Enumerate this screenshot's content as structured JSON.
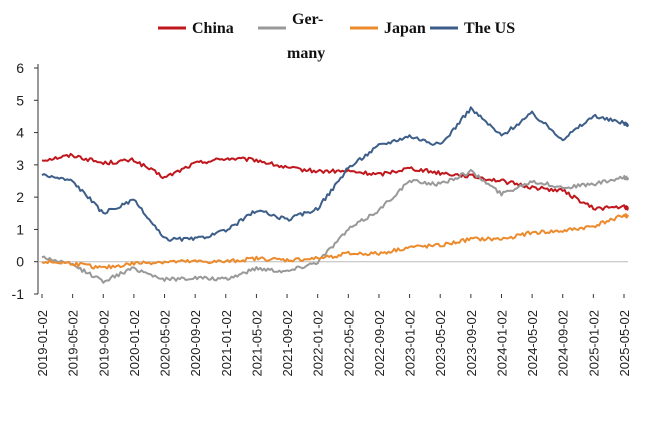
{
  "chart_data": {
    "type": "line",
    "title": "",
    "xlabel": "",
    "ylabel": "",
    "ylim": [
      -1,
      6
    ],
    "yticks": [
      "6",
      "5",
      "4",
      "3",
      "2",
      "1",
      "0",
      "-1"
    ],
    "x": [
      "2019-01-02",
      "2019-05-02",
      "2019-09-02",
      "2020-01-02",
      "2020-05-02",
      "2020-09-02",
      "2021-01-02",
      "2021-05-02",
      "2021-09-02",
      "2022-01-02",
      "2022-05-02",
      "2022-09-02",
      "2023-01-02",
      "2023-05-02",
      "2023-09-02",
      "2024-01-02",
      "2024-05-02",
      "2024-09-02",
      "2025-01-02",
      "2025-05-02"
    ],
    "legend_position": "top",
    "series": [
      {
        "name": "China",
        "color": "#c0171d",
        "values": [
          3.15,
          3.3,
          3.05,
          3.15,
          2.6,
          3.05,
          3.2,
          3.15,
          2.9,
          2.8,
          2.8,
          2.7,
          2.9,
          2.75,
          2.65,
          2.5,
          2.3,
          2.2,
          1.65,
          1.7
        ],
        "end": 1.65
      },
      {
        "name": "Ger-\nmany",
        "color": "#999999",
        "values": [
          0.15,
          -0.1,
          -0.6,
          -0.2,
          -0.55,
          -0.5,
          -0.55,
          -0.2,
          -0.3,
          0.0,
          1.0,
          1.6,
          2.5,
          2.4,
          2.8,
          2.1,
          2.5,
          2.3,
          2.4,
          2.6
        ],
        "end": 2.6
      },
      {
        "name": "Japan",
        "color": "#ec8b2d",
        "values": [
          0.0,
          -0.05,
          -0.2,
          -0.05,
          0.0,
          0.0,
          0.0,
          0.1,
          0.05,
          0.1,
          0.25,
          0.25,
          0.45,
          0.5,
          0.7,
          0.7,
          0.9,
          0.95,
          1.1,
          1.45
        ],
        "end": 1.4
      },
      {
        "name": "The US",
        "color": "#3c5e89",
        "values": [
          2.7,
          2.5,
          1.5,
          1.9,
          0.7,
          0.7,
          0.95,
          1.6,
          1.3,
          1.65,
          2.9,
          3.6,
          3.9,
          3.6,
          4.75,
          3.9,
          4.6,
          3.8,
          4.5,
          4.3
        ],
        "end": 4.25
      }
    ]
  }
}
